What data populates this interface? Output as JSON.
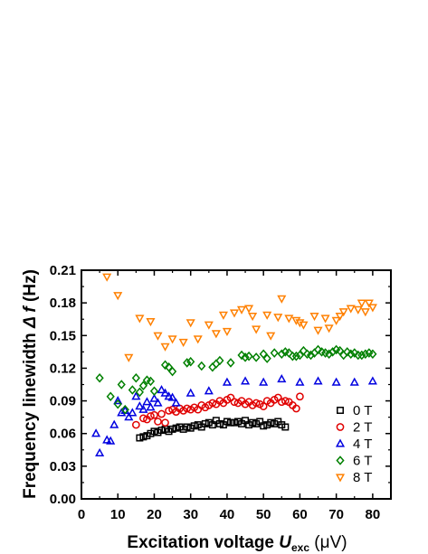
{
  "chart_data": {
    "type": "scatter",
    "xlabel": {
      "prefix": "Excitation voltage ",
      "var": "U",
      "sub": "exc",
      "suffix": " (μV)"
    },
    "ylabel": {
      "prefix": "Frequency linewidth ",
      "var": "Δ f",
      "suffix": " (Hz)"
    },
    "xlim": [
      0,
      85
    ],
    "ylim": [
      0,
      0.21
    ],
    "x_ticks": [
      0,
      10,
      20,
      30,
      40,
      50,
      60,
      70,
      80
    ],
    "y_ticks": [
      0.0,
      0.03,
      0.06,
      0.09,
      0.12,
      0.15,
      0.18,
      0.21
    ],
    "y_tick_labels": [
      "0.00",
      "0.03",
      "0.06",
      "0.09",
      "0.12",
      "0.15",
      "0.18",
      "0.21"
    ],
    "legend_position": "lower-right",
    "grid": false,
    "series": [
      {
        "name": "0 T",
        "marker": "square",
        "color": "#000000",
        "x": [
          16,
          17,
          18,
          19,
          20,
          21,
          22,
          23,
          24,
          25,
          26,
          27,
          28,
          29,
          30,
          31,
          32,
          33,
          34,
          35,
          36,
          37,
          38,
          39,
          40,
          41,
          42,
          43,
          44,
          45,
          46,
          47,
          48,
          49,
          50,
          51,
          52,
          53,
          54,
          55,
          56
        ],
        "y": [
          0.056,
          0.057,
          0.058,
          0.06,
          0.062,
          0.061,
          0.063,
          0.064,
          0.062,
          0.064,
          0.065,
          0.066,
          0.064,
          0.066,
          0.065,
          0.067,
          0.068,
          0.066,
          0.069,
          0.07,
          0.068,
          0.072,
          0.069,
          0.068,
          0.071,
          0.07,
          0.07,
          0.071,
          0.069,
          0.072,
          0.068,
          0.07,
          0.069,
          0.071,
          0.067,
          0.068,
          0.07,
          0.069,
          0.071,
          0.068,
          0.066
        ]
      },
      {
        "name": "2 T",
        "marker": "circle",
        "color": "#e00000",
        "x": [
          15,
          17,
          18,
          19,
          20,
          21,
          22,
          23,
          24,
          25,
          26,
          27,
          28,
          29,
          30,
          31,
          32,
          33,
          34,
          35,
          36,
          37,
          38,
          39,
          40,
          41,
          42,
          43,
          44,
          45,
          46,
          47,
          48,
          49,
          50,
          51,
          52,
          53,
          54,
          55,
          56,
          57,
          58,
          59,
          60
        ],
        "y": [
          0.068,
          0.074,
          0.073,
          0.076,
          0.077,
          0.071,
          0.078,
          0.07,
          0.081,
          0.082,
          0.08,
          0.083,
          0.081,
          0.083,
          0.082,
          0.084,
          0.082,
          0.086,
          0.084,
          0.086,
          0.088,
          0.087,
          0.09,
          0.088,
          0.091,
          0.093,
          0.089,
          0.088,
          0.09,
          0.087,
          0.089,
          0.086,
          0.088,
          0.087,
          0.085,
          0.09,
          0.088,
          0.091,
          0.093,
          0.089,
          0.09,
          0.089,
          0.086,
          0.083,
          0.094
        ]
      },
      {
        "name": "4 T",
        "marker": "triangle-up",
        "color": "#0000e0",
        "x": [
          4,
          5,
          7,
          8,
          9,
          10,
          11,
          12,
          13,
          14,
          15,
          16,
          17,
          18,
          19,
          20,
          21,
          22,
          23,
          24,
          25,
          26,
          30,
          35,
          40,
          45,
          50,
          55,
          60,
          65,
          70,
          75,
          80
        ],
        "y": [
          0.06,
          0.042,
          0.054,
          0.053,
          0.068,
          0.09,
          0.079,
          0.081,
          0.075,
          0.079,
          0.094,
          0.085,
          0.082,
          0.089,
          0.084,
          0.092,
          0.088,
          0.1,
          0.097,
          0.094,
          0.093,
          0.088,
          0.097,
          0.099,
          0.107,
          0.108,
          0.107,
          0.11,
          0.107,
          0.108,
          0.107,
          0.107,
          0.108
        ]
      },
      {
        "name": "6 T",
        "marker": "diamond",
        "color": "#008000",
        "x": [
          5,
          8,
          10,
          11,
          12,
          14,
          15,
          16,
          17,
          18,
          19,
          20,
          23,
          24,
          25,
          29,
          30,
          33,
          36,
          37,
          38,
          41,
          44,
          45,
          46,
          48,
          50,
          51,
          53,
          55,
          56,
          57,
          58,
          59,
          60,
          61,
          62,
          63,
          64,
          65,
          66,
          67,
          68,
          69,
          70,
          71,
          72,
          73,
          74,
          75,
          76,
          77,
          78,
          79,
          80
        ],
        "y": [
          0.111,
          0.094,
          0.087,
          0.105,
          0.082,
          0.1,
          0.111,
          0.098,
          0.104,
          0.109,
          0.108,
          0.099,
          0.123,
          0.121,
          0.117,
          0.125,
          0.126,
          0.122,
          0.121,
          0.124,
          0.127,
          0.125,
          0.132,
          0.13,
          0.131,
          0.13,
          0.133,
          0.129,
          0.134,
          0.133,
          0.135,
          0.134,
          0.131,
          0.131,
          0.132,
          0.136,
          0.133,
          0.132,
          0.134,
          0.137,
          0.135,
          0.134,
          0.133,
          0.135,
          0.137,
          0.136,
          0.132,
          0.135,
          0.133,
          0.134,
          0.132,
          0.132,
          0.133,
          0.134,
          0.133
        ]
      },
      {
        "name": "8 T",
        "marker": "triangle-down",
        "color": "#ff8000",
        "x": [
          7,
          10,
          13,
          16,
          19,
          21,
          23,
          25,
          28,
          30,
          32,
          35,
          37,
          39,
          40,
          42,
          44,
          46,
          47,
          48,
          51,
          52,
          54,
          55,
          57,
          59,
          60,
          61,
          64,
          65,
          67,
          68,
          70,
          71,
          72,
          74,
          76,
          77,
          78,
          79,
          80
        ],
        "y": [
          0.204,
          0.187,
          0.13,
          0.166,
          0.163,
          0.15,
          0.14,
          0.147,
          0.144,
          0.162,
          0.147,
          0.16,
          0.152,
          0.169,
          0.154,
          0.171,
          0.174,
          0.175,
          0.168,
          0.156,
          0.169,
          0.15,
          0.167,
          0.184,
          0.166,
          0.164,
          0.162,
          0.16,
          0.168,
          0.155,
          0.166,
          0.157,
          0.164,
          0.168,
          0.172,
          0.175,
          0.174,
          0.18,
          0.172,
          0.18,
          0.176
        ]
      }
    ]
  }
}
